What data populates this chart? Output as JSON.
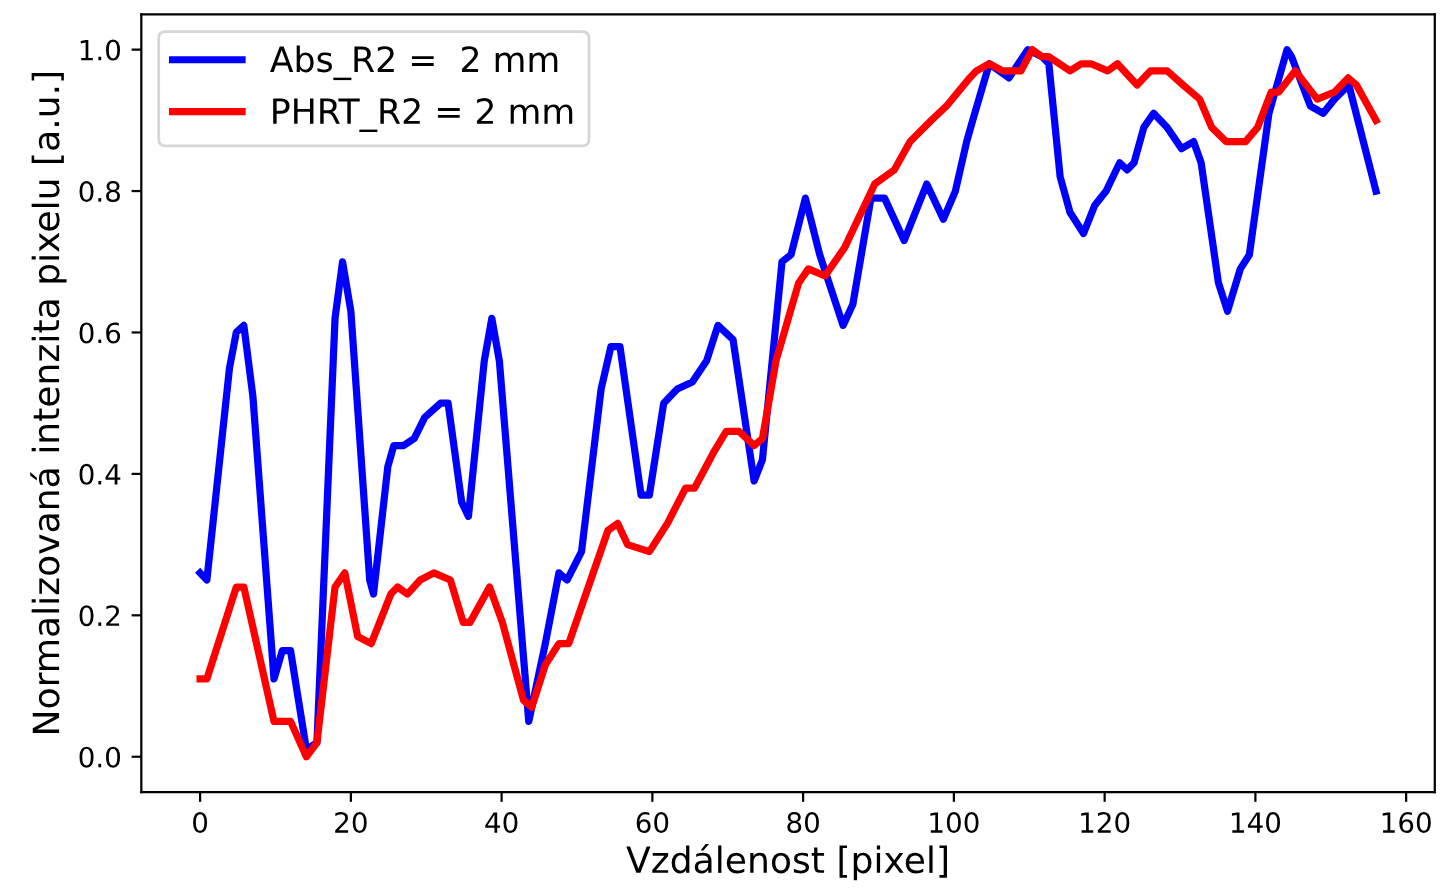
{
  "chart_data": {
    "type": "line",
    "xlabel": "Vzdálenost [pixel]",
    "ylabel": "Normalizovaná intenzita pixelu [a.u.]",
    "xlim": [
      -7.8,
      163.8
    ],
    "xticks": [
      0,
      20,
      40,
      60,
      80,
      100,
      120,
      140,
      160
    ],
    "ylim": [
      -0.05,
      1.05
    ],
    "yticks": [
      {
        "value": 0,
        "label": "0.0"
      },
      {
        "value": 0.2,
        "label": "0.2"
      },
      {
        "value": 0.4,
        "label": "0.4"
      },
      {
        "value": 0.6,
        "label": "0.6"
      },
      {
        "value": 0.8,
        "label": "0.8"
      },
      {
        "value": 1.0,
        "label": "1.0"
      }
    ],
    "grid": false,
    "legend": "top left",
    "marker": "none",
    "line_style": "solid",
    "series": [
      {
        "name": "Abs_R2 =  2 mm",
        "color": "#0000ff",
        "x": [
          0,
          0.9,
          3.9,
          4.8,
          5.8,
          7,
          9.8,
          10.9,
          12,
          14.1,
          15.5,
          17.9,
          18.9,
          20,
          22.5,
          23,
          24.9,
          25.7,
          27,
          28.4,
          29.8,
          31.9,
          32.9,
          34.7,
          35.6,
          37.7,
          38.7,
          39.7,
          43.6,
          45.8,
          47.6,
          48.7,
          50.6,
          53.2,
          54.5,
          55.7,
          58.5,
          59.6,
          61.5,
          63.3,
          65.3,
          67.2,
          68.7,
          70.7,
          73.5,
          74.6,
          77.2,
          78.4,
          80.3,
          82.2,
          85.3,
          86.6,
          89,
          90.8,
          93.4,
          96.4,
          98.6,
          100.2,
          101.7,
          102.5,
          104.7,
          107.3,
          109.8,
          111.7,
          112.6,
          114.1,
          115.4,
          117.2,
          118.7,
          120.2,
          122,
          123,
          123.9,
          125.2,
          126.5,
          128.3,
          130.2,
          131.8,
          132.8,
          135.1,
          136.3,
          138,
          139.2,
          141.8,
          144.2,
          144.8,
          147.3,
          149,
          150.5,
          152.4,
          156
        ],
        "values": [
          0.26,
          0.25,
          0.55,
          0.6,
          0.61,
          0.51,
          0.11,
          0.15,
          0.15,
          0.01,
          0.02,
          0.62,
          0.7,
          0.63,
          0.25,
          0.23,
          0.41,
          0.44,
          0.44,
          0.45,
          0.48,
          0.5,
          0.5,
          0.36,
          0.34,
          0.56,
          0.62,
          0.56,
          0.05,
          0.16,
          0.26,
          0.25,
          0.29,
          0.52,
          0.58,
          0.58,
          0.37,
          0.37,
          0.5,
          0.52,
          0.53,
          0.56,
          0.61,
          0.59,
          0.39,
          0.42,
          0.7,
          0.71,
          0.79,
          0.71,
          0.61,
          0.64,
          0.79,
          0.79,
          0.73,
          0.81,
          0.76,
          0.8,
          0.87,
          0.9,
          0.98,
          0.96,
          1.0,
          0.99,
          0.98,
          0.82,
          0.77,
          0.74,
          0.78,
          0.8,
          0.84,
          0.83,
          0.84,
          0.89,
          0.91,
          0.89,
          0.86,
          0.87,
          0.84,
          0.67,
          0.63,
          0.69,
          0.71,
          0.91,
          1.0,
          0.99,
          0.92,
          0.91,
          0.93,
          0.95,
          0.8
        ]
      },
      {
        "name": "PHRT_R2 = 2 mm",
        "color": "#ff0000",
        "x": [
          0,
          0.9,
          4.8,
          5.8,
          9.8,
          10.9,
          12,
          14.1,
          15.5,
          17.9,
          19.2,
          20.9,
          22.7,
          25.3,
          26.2,
          27.5,
          29.2,
          31,
          33.2,
          34.9,
          35.8,
          38.4,
          40.1,
          42.9,
          44,
          45.8,
          47.6,
          48.9,
          51.5,
          54.1,
          55.4,
          56.7,
          59.6,
          62,
          64.4,
          65.6,
          68.1,
          69.8,
          71.5,
          73.5,
          74.6,
          76.4,
          79.4,
          80.7,
          82.9,
          85.5,
          89.5,
          92.1,
          94.2,
          97,
          99,
          102.1,
          103,
          104.7,
          106.5,
          108.9,
          110.4,
          111.7,
          112.6,
          115.4,
          116.9,
          118.2,
          120.4,
          121.7,
          124.3,
          126.1,
          128.3,
          130.4,
          132.6,
          134.2,
          136.1,
          138.7,
          140.3,
          142.1,
          143.1,
          145.3,
          148.2,
          150.5,
          152.3,
          153.4,
          156
        ],
        "values": [
          0.11,
          0.11,
          0.24,
          0.24,
          0.05,
          0.05,
          0.05,
          0.0,
          0.02,
          0.24,
          0.26,
          0.17,
          0.16,
          0.23,
          0.24,
          0.23,
          0.25,
          0.26,
          0.25,
          0.19,
          0.19,
          0.24,
          0.19,
          0.08,
          0.07,
          0.13,
          0.16,
          0.16,
          0.24,
          0.32,
          0.33,
          0.3,
          0.29,
          0.33,
          0.38,
          0.38,
          0.43,
          0.46,
          0.46,
          0.44,
          0.45,
          0.56,
          0.67,
          0.69,
          0.68,
          0.72,
          0.81,
          0.83,
          0.87,
          0.9,
          0.92,
          0.96,
          0.97,
          0.98,
          0.97,
          0.97,
          1.0,
          0.99,
          0.99,
          0.97,
          0.98,
          0.98,
          0.97,
          0.98,
          0.95,
          0.97,
          0.97,
          0.95,
          0.93,
          0.89,
          0.87,
          0.87,
          0.89,
          0.94,
          0.94,
          0.97,
          0.93,
          0.94,
          0.96,
          0.95,
          0.9
        ]
      }
    ]
  }
}
